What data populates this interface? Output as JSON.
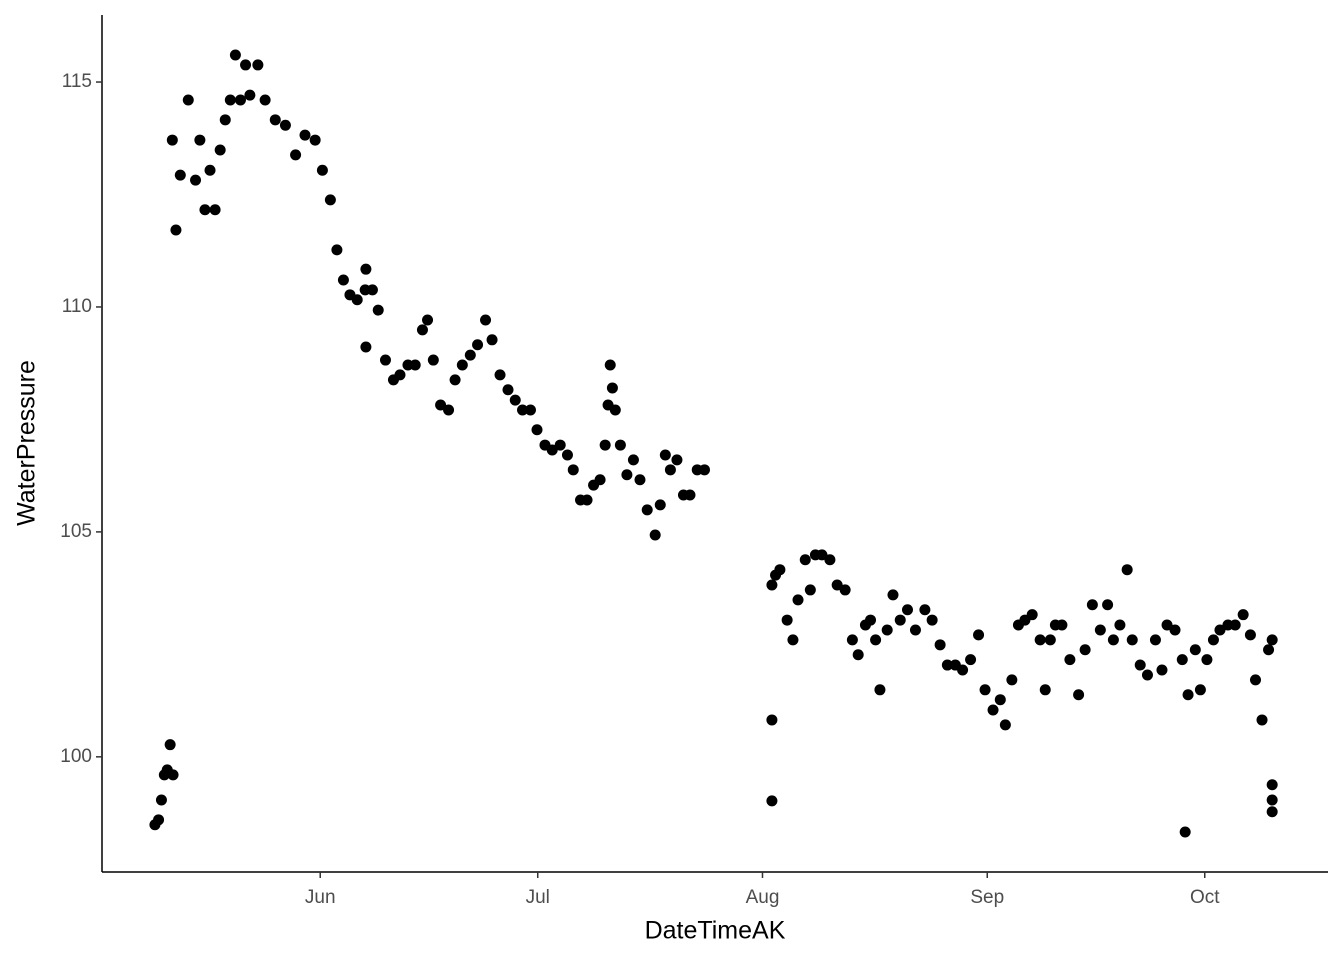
{
  "chart_data": {
    "type": "scatter",
    "x_label": "DateTimeAK",
    "y_label": "WaterPressure",
    "color": "#000000",
    "xlim": [
      121.9,
      291
    ],
    "ylim": [
      97.44,
      116.49
    ],
    "xticks": [
      {
        "value": 152,
        "label": "Jun"
      },
      {
        "value": 182,
        "label": "Jul"
      },
      {
        "value": 213,
        "label": "Aug"
      },
      {
        "value": 244,
        "label": "Sep"
      },
      {
        "value": 274,
        "label": "Oct"
      }
    ],
    "yticks": [
      100,
      105,
      110,
      115
    ],
    "grid": false,
    "x": [
      129.2,
      129.7,
      130.1,
      130.5,
      130.9,
      131.3,
      131.7,
      131.6,
      132.1,
      132.7,
      133.8,
      134.8,
      135.4,
      136.1,
      136.8,
      137.5,
      138.2,
      138.9,
      139.6,
      140.3,
      141.0,
      141.7,
      142.3,
      143.4,
      144.4,
      145.8,
      147.2,
      148.6,
      149.9,
      151.3,
      152.3,
      153.4,
      154.3,
      155.2,
      156.1,
      157.1,
      158.2,
      159.2,
      160.0,
      161.0,
      162.1,
      163.0,
      164.1,
      165.1,
      166.1,
      166.8,
      167.6,
      168.6,
      169.7,
      170.6,
      171.6,
      172.7,
      173.7,
      174.8,
      175.7,
      176.8,
      177.9,
      178.9,
      179.9,
      181.0,
      181.9,
      183.0,
      184.0,
      185.1,
      186.1,
      186.9,
      187.9,
      188.8,
      189.7,
      190.6,
      191.3,
      191.7,
      192.0,
      192.3,
      192.7,
      193.4,
      194.3,
      195.2,
      196.1,
      197.1,
      198.2,
      198.9,
      199.6,
      200.3,
      201.2,
      202.1,
      203.0,
      204.0,
      205.0,
      158.3,
      158.3,
      214.3,
      214.8,
      215.4,
      216.4,
      217.2,
      217.9,
      218.9,
      219.6,
      220.3,
      221.2,
      222.3,
      223.3,
      224.4,
      225.4,
      226.2,
      227.2,
      227.9,
      228.6,
      229.2,
      230.2,
      231.0,
      232.0,
      233.0,
      234.1,
      235.4,
      236.4,
      237.5,
      238.5,
      239.6,
      240.6,
      241.7,
      242.8,
      243.7,
      244.8,
      245.8,
      246.5,
      247.4,
      248.3,
      249.2,
      250.2,
      251.3,
      252.0,
      252.7,
      253.4,
      254.3,
      255.4,
      256.6,
      257.5,
      258.5,
      259.6,
      260.6,
      261.4,
      262.3,
      263.3,
      264.0,
      265.1,
      266.1,
      267.2,
      268.1,
      268.8,
      269.9,
      270.9,
      271.7,
      272.7,
      273.4,
      274.3,
      275.2,
      276.1,
      277.2,
      278.2,
      279.3,
      280.3,
      281.0,
      281.9,
      282.8,
      283.3,
      214.3,
      214.3,
      271.3,
      283.3,
      283.3,
      283.3
    ],
    "values": [
      98.49,
      98.6,
      99.04,
      99.6,
      99.71,
      100.27,
      99.6,
      113.71,
      111.71,
      112.93,
      114.6,
      112.82,
      113.71,
      112.16,
      113.04,
      112.16,
      113.49,
      114.16,
      114.6,
      115.6,
      114.6,
      115.38,
      114.71,
      115.38,
      114.6,
      114.16,
      114.04,
      113.38,
      113.82,
      113.71,
      113.04,
      112.38,
      111.27,
      110.6,
      110.27,
      110.16,
      110.38,
      110.38,
      109.93,
      108.82,
      108.38,
      108.49,
      108.71,
      108.71,
      109.49,
      109.71,
      108.82,
      107.82,
      107.71,
      108.38,
      108.71,
      108.93,
      109.16,
      109.71,
      109.27,
      108.49,
      108.16,
      107.93,
      107.71,
      107.71,
      107.27,
      106.93,
      106.82,
      106.93,
      106.71,
      106.38,
      105.71,
      105.71,
      106.04,
      106.16,
      106.93,
      107.82,
      108.71,
      108.2,
      107.71,
      106.93,
      106.27,
      106.6,
      106.16,
      105.49,
      104.93,
      105.6,
      106.71,
      106.38,
      106.6,
      105.82,
      105.82,
      106.38,
      106.38,
      110.84,
      109.11,
      103.82,
      104.04,
      104.16,
      103.04,
      102.6,
      103.49,
      104.38,
      103.71,
      104.49,
      104.49,
      104.38,
      103.82,
      103.71,
      102.6,
      102.27,
      102.93,
      103.04,
      102.6,
      101.49,
      102.82,
      103.6,
      103.04,
      103.27,
      102.82,
      103.27,
      103.04,
      102.49,
      102.04,
      102.04,
      101.93,
      102.16,
      102.71,
      101.49,
      101.04,
      101.27,
      100.71,
      101.71,
      102.93,
      103.04,
      103.16,
      102.6,
      101.49,
      102.6,
      102.93,
      102.93,
      102.16,
      101.38,
      102.38,
      103.38,
      102.82,
      103.38,
      102.6,
      102.93,
      104.16,
      102.6,
      102.04,
      101.82,
      102.6,
      101.93,
      102.93,
      102.82,
      102.16,
      101.38,
      102.38,
      101.49,
      102.16,
      102.6,
      102.82,
      102.93,
      102.93,
      103.16,
      102.71,
      101.71,
      100.82,
      102.38,
      102.6,
      100.82,
      99.02,
      98.33,
      99.38,
      99.04,
      98.78
    ]
  }
}
